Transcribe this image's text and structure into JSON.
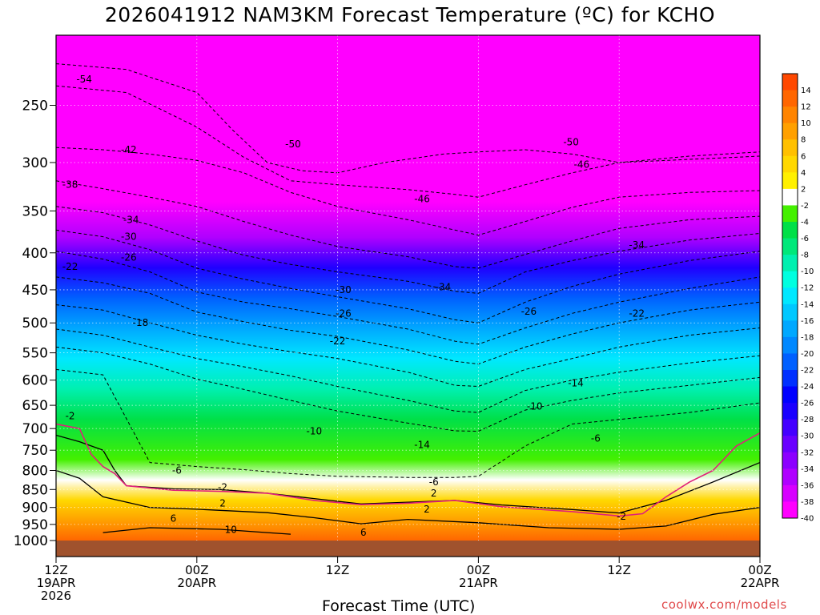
{
  "title": "2026041912 NAM3KM Forecast Temperature (ºC) for KCHO",
  "x_axis_title": "Forecast Time (UTC)",
  "credit": "coolwx.com/models",
  "colors": {
    "background": "#ffffff",
    "ground": "#a0522d",
    "freezing_line": "#e0207a",
    "credit_text": "#e0494a",
    "colorbar": [
      "#ff00ff",
      "#d700ff",
      "#b000ff",
      "#8c00ff",
      "#6a00ff",
      "#4400ff",
      "#1a00ff",
      "#0000ff",
      "#0030ff",
      "#0060ff",
      "#0088ff",
      "#00a8ff",
      "#00c8ff",
      "#00e8ff",
      "#00ffe0",
      "#00f0b0",
      "#00e87a",
      "#00e048",
      "#44f000",
      "#ffffff",
      "#fff000",
      "#ffd800",
      "#ffc000",
      "#ffa000",
      "#ff8400",
      "#ff6600",
      "#ff4800"
    ]
  },
  "chart_data": {
    "type": "heatmap",
    "description_variable": "Temperature (ºC)",
    "y_axis": {
      "label": "",
      "scale": "log",
      "inverted": true,
      "ticks": [
        250,
        300,
        350,
        400,
        450,
        500,
        550,
        600,
        650,
        700,
        750,
        800,
        850,
        900,
        950,
        1000
      ],
      "range": [
        200,
        1020
      ]
    },
    "x_axis": {
      "label": "Forecast Time (UTC)",
      "range_hours": [
        0,
        60
      ],
      "ticks": [
        {
          "hour": 0,
          "lines": [
            "12Z",
            "19APR",
            "2026"
          ]
        },
        {
          "hour": 12,
          "lines": [
            "00Z",
            "20APR"
          ]
        },
        {
          "hour": 24,
          "lines": [
            "12Z"
          ]
        },
        {
          "hour": 36,
          "lines": [
            "00Z",
            "21APR"
          ]
        },
        {
          "hour": 48,
          "lines": [
            "12Z"
          ]
        },
        {
          "hour": 60,
          "lines": [
            "00Z",
            "22APR"
          ]
        }
      ]
    },
    "colorbar": {
      "labels": [
        "14",
        "12",
        "10",
        "8",
        "6",
        "4",
        "2",
        "-2",
        "-4",
        "-6",
        "-8",
        "-10",
        "-12",
        "-14",
        "-16",
        "-18",
        "-20",
        "-22",
        "-24",
        "-26",
        "-28",
        "-30",
        "-32",
        "-34",
        "-36",
        "-38",
        "-40"
      ]
    },
    "isotherms": [
      {
        "value": -50,
        "points": [
          [
            0,
            219
          ],
          [
            6,
            223
          ],
          [
            12,
            240
          ],
          [
            15,
            270
          ],
          [
            18,
            300
          ],
          [
            21,
            308
          ],
          [
            24,
            310
          ],
          [
            28,
            300
          ],
          [
            33,
            292
          ],
          [
            36,
            290
          ],
          [
            40,
            288
          ],
          [
            44,
            292
          ],
          [
            48,
            300
          ],
          [
            54,
            294
          ],
          [
            60,
            290
          ]
        ]
      },
      {
        "value": -46,
        "points": [
          [
            0,
            235
          ],
          [
            6,
            240
          ],
          [
            12,
            268
          ],
          [
            16,
            295
          ],
          [
            20,
            318
          ],
          [
            24,
            322
          ],
          [
            30,
            327
          ],
          [
            34,
            332
          ],
          [
            36,
            335
          ],
          [
            40,
            322
          ],
          [
            44,
            310
          ],
          [
            48,
            300
          ],
          [
            54,
            297
          ],
          [
            60,
            294
          ]
        ]
      },
      {
        "value": -42,
        "points": [
          [
            0,
            286
          ],
          [
            4,
            288
          ],
          [
            8,
            292
          ],
          [
            12,
            298
          ],
          [
            16,
            310
          ],
          [
            20,
            330
          ],
          [
            24,
            345
          ],
          [
            30,
            360
          ],
          [
            34,
            372
          ],
          [
            36,
            378
          ],
          [
            40,
            362
          ],
          [
            44,
            346
          ],
          [
            48,
            335
          ],
          [
            54,
            330
          ],
          [
            60,
            328
          ]
        ]
      },
      {
        "value": -38,
        "points": [
          [
            0,
            318
          ],
          [
            4,
            326
          ],
          [
            8,
            335
          ],
          [
            12,
            345
          ],
          [
            16,
            362
          ],
          [
            20,
            378
          ],
          [
            24,
            392
          ],
          [
            30,
            405
          ],
          [
            34,
            418
          ],
          [
            36,
            420
          ],
          [
            40,
            402
          ],
          [
            44,
            385
          ],
          [
            48,
            370
          ],
          [
            54,
            360
          ],
          [
            60,
            356
          ]
        ]
      },
      {
        "value": -34,
        "points": [
          [
            0,
            345
          ],
          [
            4,
            352
          ],
          [
            8,
            366
          ],
          [
            12,
            385
          ],
          [
            16,
            403
          ],
          [
            20,
            415
          ],
          [
            24,
            425
          ],
          [
            30,
            438
          ],
          [
            34,
            452
          ],
          [
            36,
            455
          ],
          [
            40,
            425
          ],
          [
            44,
            410
          ],
          [
            48,
            398
          ],
          [
            54,
            384
          ],
          [
            60,
            376
          ]
        ]
      },
      {
        "value": -30,
        "points": [
          [
            0,
            372
          ],
          [
            4,
            380
          ],
          [
            8,
            396
          ],
          [
            12,
            420
          ],
          [
            16,
            435
          ],
          [
            20,
            448
          ],
          [
            24,
            460
          ],
          [
            30,
            478
          ],
          [
            34,
            495
          ],
          [
            36,
            500
          ],
          [
            40,
            468
          ],
          [
            44,
            445
          ],
          [
            48,
            428
          ],
          [
            54,
            410
          ],
          [
            60,
            398
          ]
        ]
      },
      {
        "value": -26,
        "points": [
          [
            0,
            398
          ],
          [
            4,
            408
          ],
          [
            8,
            425
          ],
          [
            12,
            453
          ],
          [
            16,
            468
          ],
          [
            20,
            478
          ],
          [
            24,
            490
          ],
          [
            30,
            510
          ],
          [
            34,
            530
          ],
          [
            36,
            535
          ],
          [
            40,
            508
          ],
          [
            44,
            485
          ],
          [
            48,
            468
          ],
          [
            54,
            448
          ],
          [
            60,
            432
          ]
        ]
      },
      {
        "value": -22,
        "points": [
          [
            0,
            432
          ],
          [
            4,
            440
          ],
          [
            8,
            455
          ],
          [
            12,
            483
          ],
          [
            16,
            498
          ],
          [
            20,
            512
          ],
          [
            24,
            522
          ],
          [
            30,
            545
          ],
          [
            34,
            565
          ],
          [
            36,
            570
          ],
          [
            40,
            540
          ],
          [
            44,
            518
          ],
          [
            48,
            500
          ],
          [
            54,
            480
          ],
          [
            60,
            468
          ]
        ]
      },
      {
        "value": -18,
        "points": [
          [
            0,
            472
          ],
          [
            4,
            480
          ],
          [
            8,
            500
          ],
          [
            12,
            520
          ],
          [
            16,
            535
          ],
          [
            20,
            548
          ],
          [
            24,
            560
          ],
          [
            30,
            585
          ],
          [
            34,
            610
          ],
          [
            36,
            612
          ],
          [
            40,
            580
          ],
          [
            44,
            560
          ],
          [
            48,
            540
          ],
          [
            54,
            520
          ],
          [
            60,
            508
          ]
        ]
      },
      {
        "value": -14,
        "points": [
          [
            0,
            510
          ],
          [
            4,
            520
          ],
          [
            8,
            540
          ],
          [
            12,
            560
          ],
          [
            16,
            575
          ],
          [
            20,
            592
          ],
          [
            24,
            612
          ],
          [
            30,
            640
          ],
          [
            34,
            662
          ],
          [
            36,
            665
          ],
          [
            40,
            620
          ],
          [
            44,
            600
          ],
          [
            48,
            585
          ],
          [
            54,
            568
          ],
          [
            60,
            555
          ]
        ]
      },
      {
        "value": -10,
        "points": [
          [
            0,
            540
          ],
          [
            4,
            550
          ],
          [
            8,
            570
          ],
          [
            12,
            598
          ],
          [
            16,
            618
          ],
          [
            20,
            640
          ],
          [
            24,
            662
          ],
          [
            30,
            688
          ],
          [
            34,
            705
          ],
          [
            36,
            706
          ],
          [
            40,
            660
          ],
          [
            44,
            640
          ],
          [
            48,
            625
          ],
          [
            54,
            610
          ],
          [
            60,
            595
          ]
        ]
      },
      {
        "value": -6,
        "points": [
          [
            0,
            580
          ],
          [
            4,
            590
          ],
          [
            8,
            780
          ],
          [
            12,
            790
          ],
          [
            16,
            798
          ],
          [
            20,
            808
          ],
          [
            24,
            815
          ],
          [
            30,
            818
          ],
          [
            34,
            818
          ],
          [
            36,
            815
          ],
          [
            40,
            740
          ],
          [
            44,
            690
          ],
          [
            48,
            680
          ],
          [
            54,
            665
          ],
          [
            60,
            645
          ]
        ]
      },
      {
        "value": 2,
        "points": [
          [
            0,
            715
          ],
          [
            2,
            730
          ],
          [
            4,
            750
          ],
          [
            5,
            800
          ],
          [
            6,
            840
          ],
          [
            10,
            848
          ],
          [
            14,
            850
          ],
          [
            18,
            860
          ],
          [
            22,
            875
          ],
          [
            26,
            890
          ],
          [
            30,
            885
          ],
          [
            34,
            880
          ],
          [
            38,
            893
          ],
          [
            44,
            906
          ],
          [
            48,
            916
          ],
          [
            52,
            880
          ],
          [
            56,
            830
          ],
          [
            60,
            780
          ]
        ]
      },
      {
        "value": 6,
        "points": [
          [
            0,
            800
          ],
          [
            2,
            820
          ],
          [
            4,
            870
          ],
          [
            8,
            900
          ],
          [
            12,
            905
          ],
          [
            18,
            915
          ],
          [
            22,
            930
          ],
          [
            26,
            948
          ],
          [
            30,
            935
          ],
          [
            36,
            945
          ],
          [
            42,
            960
          ],
          [
            48,
            965
          ],
          [
            52,
            955
          ],
          [
            56,
            920
          ],
          [
            60,
            900
          ]
        ]
      },
      {
        "value": 10,
        "points": [
          [
            4,
            975
          ],
          [
            8,
            960
          ],
          [
            14,
            965
          ],
          [
            18,
            975
          ],
          [
            20,
            980
          ]
        ]
      }
    ],
    "freezing_line": {
      "value": 0,
      "points": [
        [
          0,
          690
        ],
        [
          2,
          700
        ],
        [
          3,
          760
        ],
        [
          4,
          790
        ],
        [
          5,
          808
        ],
        [
          6,
          840
        ],
        [
          10,
          852
        ],
        [
          14,
          855
        ],
        [
          18,
          860
        ],
        [
          22,
          880
        ],
        [
          26,
          892
        ],
        [
          30,
          888
        ],
        [
          34,
          880
        ],
        [
          38,
          898
        ],
        [
          44,
          912
        ],
        [
          48,
          925
        ],
        [
          50,
          918
        ],
        [
          52,
          870
        ],
        [
          54,
          830
        ],
        [
          56,
          800
        ],
        [
          58,
          740
        ],
        [
          60,
          710
        ]
      ]
    },
    "contour_labels": [
      {
        "text": "-54",
        "hour": 2.4,
        "p": 230
      },
      {
        "text": "-50",
        "hour": 20.2,
        "p": 283
      },
      {
        "text": "-50",
        "hour": 43.9,
        "p": 281
      },
      {
        "text": "-42",
        "hour": 6.2,
        "p": 288
      },
      {
        "text": "-46",
        "hour": 44.8,
        "p": 302
      },
      {
        "text": "-46",
        "hour": 31.2,
        "p": 337
      },
      {
        "text": "-38",
        "hour": 1.2,
        "p": 322
      },
      {
        "text": "-34",
        "hour": 6.4,
        "p": 360
      },
      {
        "text": "-34",
        "hour": 49.5,
        "p": 390
      },
      {
        "text": "-30",
        "hour": 6.2,
        "p": 380
      },
      {
        "text": "-30",
        "hour": 24.5,
        "p": 450
      },
      {
        "text": "-34",
        "hour": 33.0,
        "p": 446
      },
      {
        "text": "-26",
        "hour": 6.2,
        "p": 406
      },
      {
        "text": "-26",
        "hour": 24.5,
        "p": 485
      },
      {
        "text": "-26",
        "hour": 40.3,
        "p": 482
      },
      {
        "text": "-22",
        "hour": 1.2,
        "p": 418
      },
      {
        "text": "-22",
        "hour": 24.0,
        "p": 530
      },
      {
        "text": "-22",
        "hour": 49.5,
        "p": 485
      },
      {
        "text": "-18",
        "hour": 7.2,
        "p": 500
      },
      {
        "text": "-14",
        "hour": 44.3,
        "p": 606
      },
      {
        "text": "-10",
        "hour": 40.8,
        "p": 652
      },
      {
        "text": "-10",
        "hour": 22.0,
        "p": 706
      },
      {
        "text": "-14",
        "hour": 31.2,
        "p": 737
      },
      {
        "text": "-6",
        "hour": 46.0,
        "p": 722
      },
      {
        "text": "-2",
        "hour": 1.2,
        "p": 673
      },
      {
        "text": "-6",
        "hour": 10.3,
        "p": 800
      },
      {
        "text": "-6",
        "hour": 32.2,
        "p": 830
      },
      {
        "text": "-2",
        "hour": 14.2,
        "p": 844
      },
      {
        "text": "2",
        "hour": 32.2,
        "p": 860
      },
      {
        "text": "2",
        "hour": 14.2,
        "p": 888
      },
      {
        "text": "2",
        "hour": 31.6,
        "p": 905
      },
      {
        "text": "-2",
        "hour": 48.2,
        "p": 926
      },
      {
        "text": "6",
        "hour": 10.0,
        "p": 932
      },
      {
        "text": "10",
        "hour": 14.9,
        "p": 966
      },
      {
        "text": "6",
        "hour": 26.2,
        "p": 975
      }
    ]
  }
}
